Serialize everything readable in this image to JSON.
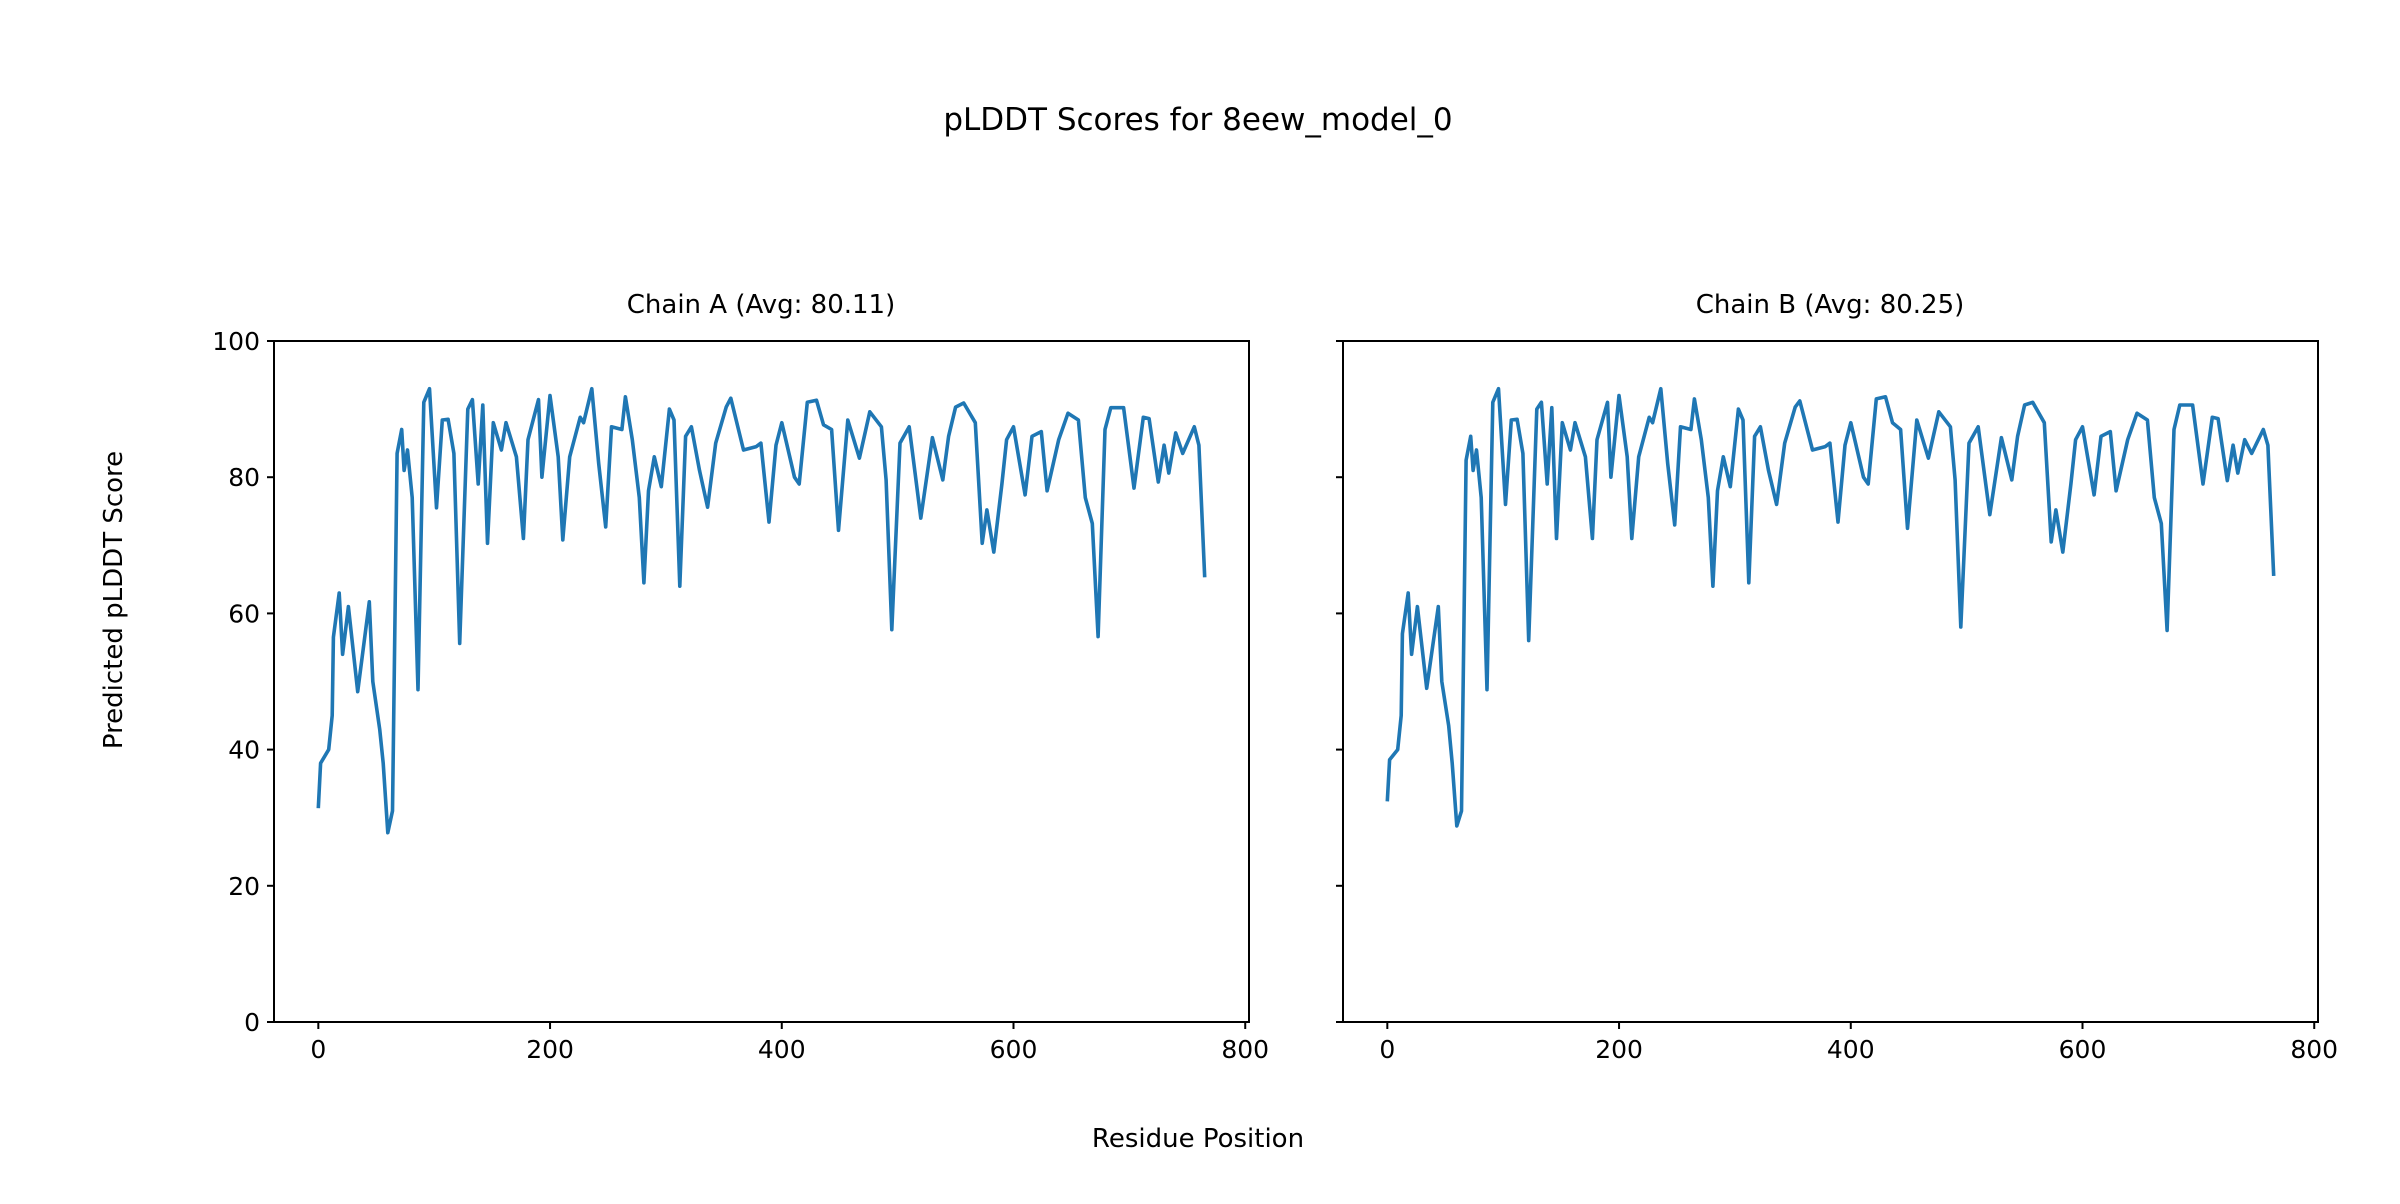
{
  "title": "pLDDT Scores for 8eew_model_0",
  "xlabel": "Residue Position",
  "ylabel": "Predicted pLDDT Score",
  "chart_data": [
    {
      "type": "line",
      "title": "Chain A (Avg: 80.11)",
      "xlabel": "Residue Position",
      "ylabel": "Predicted pLDDT Score",
      "xlim": [
        -38.25,
        803.25
      ],
      "ylim": [
        0,
        100
      ],
      "xticks": [
        0,
        200,
        400,
        600,
        800
      ],
      "yticks": [
        0,
        20,
        40,
        60,
        80,
        100
      ],
      "grid": false,
      "color": "#1f77b4",
      "x": [
        0,
        2,
        9,
        12,
        13,
        18,
        21,
        26,
        34,
        44,
        47,
        53,
        56,
        60,
        64,
        68,
        72,
        74,
        77,
        81,
        86,
        91,
        96,
        102,
        107,
        112,
        117,
        122,
        129,
        133,
        138,
        142,
        146,
        151,
        158,
        162,
        171,
        177,
        181,
        190,
        193,
        200,
        207,
        211,
        217,
        226,
        229,
        236,
        242,
        248,
        253,
        262,
        265,
        271,
        277,
        281,
        285,
        290,
        296,
        303,
        307,
        312,
        317,
        322,
        329,
        336,
        343,
        352,
        356,
        367,
        378,
        382,
        389,
        395,
        400,
        411,
        415,
        422,
        430,
        436,
        443,
        449,
        457,
        467,
        476,
        486,
        490,
        495,
        502,
        510,
        520,
        530,
        539,
        544,
        550,
        557,
        567,
        573,
        577,
        583,
        590,
        594,
        600,
        610,
        616,
        624,
        629,
        639,
        647,
        656,
        662,
        668,
        673,
        679,
        684,
        695,
        704,
        712,
        717,
        725,
        730,
        734,
        740,
        746,
        756,
        760,
        765
      ],
      "y": [
        31.4,
        38,
        40,
        45,
        56.5,
        63,
        54,
        61,
        48.5,
        61.7,
        50,
        43,
        38,
        27.8,
        31,
        83.5,
        87,
        81,
        84,
        77,
        48.8,
        91,
        93,
        75.5,
        88.4,
        88.5,
        83.5,
        55.6,
        90,
        91.4,
        79,
        90.6,
        70.3,
        88,
        84,
        88,
        83,
        71,
        85.5,
        91.4,
        80,
        92,
        83,
        70.8,
        83,
        88.8,
        88,
        93,
        82,
        72.7,
        87.4,
        87,
        91.8,
        85.5,
        77,
        64.5,
        78,
        83,
        78.6,
        90,
        88.4,
        64,
        86,
        87.4,
        81,
        75.6,
        85,
        90.3,
        91.6,
        84,
        84.5,
        85,
        73.4,
        84.7,
        88,
        80,
        79,
        91,
        91.3,
        87.7,
        87,
        72.2,
        88.4,
        82.8,
        89.6,
        87.4,
        79.6,
        57.6,
        85,
        87.4,
        74,
        85.8,
        79.6,
        86,
        90.3,
        90.9,
        88,
        70.3,
        75.2,
        69,
        79,
        85.5,
        87.4,
        77.4,
        86,
        86.7,
        78,
        85.5,
        89.4,
        88.4,
        77,
        73.2,
        56.6,
        87,
        90.2,
        90.2,
        78.4,
        88.8,
        88.6,
        79.3,
        84.7,
        80.6,
        86.5,
        83.5,
        87.4,
        84.7,
        65.3
      ]
    },
    {
      "type": "line",
      "title": "Chain B (Avg: 80.25)",
      "xlabel": "Residue Position",
      "ylabel": "Predicted pLDDT Score",
      "xlim": [
        -38.25,
        803.25
      ],
      "ylim": [
        0,
        100
      ],
      "xticks": [
        0,
        200,
        400,
        600,
        800
      ],
      "yticks": [
        0,
        20,
        40,
        60,
        80,
        100
      ],
      "grid": false,
      "color": "#1f77b4",
      "x": [
        0,
        2,
        9,
        12,
        13,
        18,
        21,
        26,
        34,
        44,
        47,
        53,
        56,
        60,
        64,
        68,
        72,
        74,
        77,
        81,
        86,
        91,
        96,
        102,
        107,
        112,
        117,
        122,
        129,
        133,
        138,
        142,
        146,
        151,
        158,
        162,
        171,
        177,
        181,
        190,
        193,
        200,
        207,
        211,
        217,
        226,
        229,
        236,
        242,
        248,
        253,
        262,
        265,
        271,
        277,
        281,
        285,
        290,
        296,
        303,
        307,
        312,
        317,
        322,
        329,
        336,
        343,
        352,
        356,
        367,
        378,
        382,
        389,
        395,
        400,
        411,
        415,
        422,
        430,
        436,
        443,
        449,
        457,
        467,
        476,
        486,
        490,
        495,
        502,
        510,
        520,
        530,
        539,
        544,
        550,
        557,
        567,
        573,
        577,
        583,
        590,
        594,
        600,
        610,
        616,
        624,
        629,
        639,
        647,
        656,
        662,
        668,
        673,
        679,
        684,
        695,
        704,
        712,
        717,
        725,
        730,
        734,
        740,
        746,
        756,
        760,
        765
      ],
      "y": [
        32.4,
        38.5,
        40,
        45,
        57,
        63,
        54,
        61,
        49,
        61,
        50,
        43.5,
        38,
        28.8,
        31,
        82.5,
        86,
        81,
        84,
        77,
        48.8,
        91,
        93,
        76,
        88.4,
        88.5,
        83.5,
        56,
        90,
        91,
        79,
        90.2,
        71,
        88,
        84,
        88,
        83,
        71,
        85.5,
        91,
        80,
        92,
        83,
        71,
        83,
        88.8,
        88,
        93,
        82,
        73,
        87.4,
        87,
        91.5,
        85.5,
        77,
        64,
        78,
        83,
        78.6,
        90,
        88.4,
        64.5,
        86,
        87.4,
        81,
        76,
        85,
        90.3,
        91.2,
        84,
        84.5,
        85,
        73.4,
        84.7,
        88,
        80,
        79,
        91.5,
        91.8,
        88,
        87,
        72.5,
        88.4,
        82.8,
        89.6,
        87.4,
        79.6,
        58,
        85,
        87.4,
        74.5,
        85.8,
        79.6,
        86,
        90.6,
        91,
        88,
        70.5,
        75.2,
        69,
        79,
        85.5,
        87.4,
        77.4,
        86,
        86.7,
        78,
        85.5,
        89.4,
        88.4,
        77,
        73.2,
        57.5,
        87,
        90.6,
        90.6,
        79,
        88.8,
        88.6,
        79.5,
        84.7,
        80.6,
        85.5,
        83.5,
        87,
        84.7,
        65.5
      ]
    }
  ]
}
